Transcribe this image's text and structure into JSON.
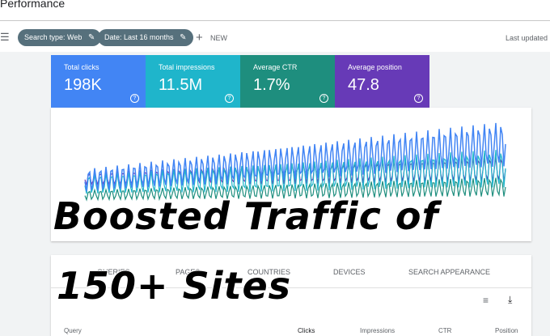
{
  "header": {
    "title": "Performance",
    "last_updated": "Last updated"
  },
  "filters": {
    "chips": [
      "Search type: Web",
      "Date: Last 16 months"
    ],
    "new": "NEW"
  },
  "metrics": [
    {
      "label": "Total clicks",
      "value": "198K"
    },
    {
      "label": "Total impressions",
      "value": "11.5M"
    },
    {
      "label": "Average CTR",
      "value": "1.7%"
    },
    {
      "label": "Average position",
      "value": "47.8"
    }
  ],
  "overlay": {
    "line1": "Boosted Traffic of",
    "line2": "150+ Sites"
  },
  "tabs": [
    "QUERIES",
    "PAGES",
    "COUNTRIES",
    "DEVICES",
    "SEARCH APPEARANCE"
  ],
  "table": {
    "columns": [
      "Query",
      "Clicks",
      "Impressions",
      "CTR",
      "Position"
    ]
  }
}
